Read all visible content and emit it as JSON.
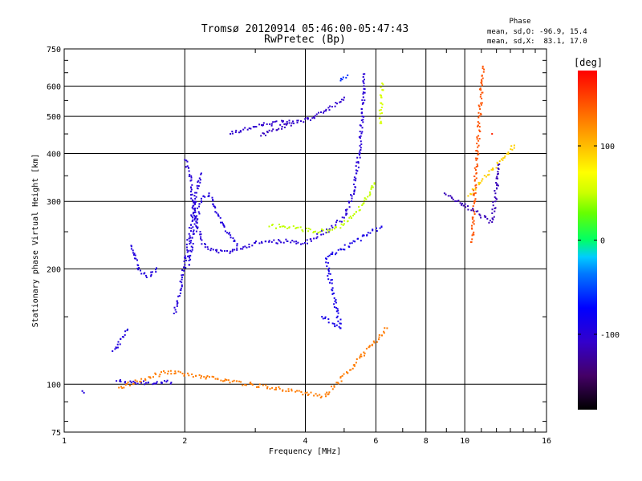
{
  "chart_data": {
    "type": "scatter",
    "title": "Tromsø 20120914 05:46:00-05:47:43",
    "subtitle": "RwPretec (Bp)",
    "xlabel": "Frequency [MHz]",
    "ylabel": "Stationary phase Virtual Height [km]",
    "x_scale": "log",
    "y_scale": "log",
    "xlim": [
      1,
      16
    ],
    "ylim": [
      75,
      750
    ],
    "grid": true,
    "x_ticks": [
      1,
      2,
      4,
      6,
      8,
      10,
      16
    ],
    "x_tick_labels": [
      "1",
      "2",
      "4",
      "6",
      "8",
      "10",
      "16"
    ],
    "y_ticks": [
      75,
      100,
      200,
      300,
      400,
      500,
      600,
      750
    ],
    "y_tick_labels": [
      "75",
      "100",
      "200",
      "300",
      "400",
      "500",
      "600",
      "750"
    ],
    "stats": {
      "heading": "Phase",
      "line_o": "mean, sd,O: -96.9, 15.4",
      "line_x": "mean, sd,X:  83.1, 17.0"
    },
    "colorbar": {
      "unit": "[deg]",
      "range": [
        -180,
        180
      ],
      "ticks": [
        100,
        0,
        -100
      ],
      "tick_labels": [
        "100",
        "0",
        "-100"
      ]
    },
    "traces": [
      {
        "name": "",
        "phase": -96,
        "points": [
          [
            1.11,
            96
          ],
          [
            1.12,
            95
          ]
        ]
      },
      {
        "name": "",
        "phase": -98,
        "points": [
          [
            1.35,
            102
          ],
          [
            1.42,
            101.5
          ],
          [
            1.5,
            101
          ],
          [
            1.6,
            100.8
          ],
          [
            1.7,
            100.5
          ],
          [
            1.75,
            100.5
          ],
          [
            1.8,
            101.5
          ],
          [
            1.85,
            101
          ]
        ]
      },
      {
        "name": "",
        "phase": -95,
        "points": [
          [
            1.32,
            122
          ],
          [
            1.36,
            127
          ],
          [
            1.4,
            133
          ],
          [
            1.44,
            139
          ]
        ]
      },
      {
        "name": "",
        "phase": -95,
        "points": [
          [
            1.47,
            230
          ],
          [
            1.5,
            213
          ],
          [
            1.55,
            198
          ],
          [
            1.6,
            192
          ],
          [
            1.65,
            193
          ],
          [
            1.7,
            201
          ]
        ]
      },
      {
        "name": "",
        "phase": -98,
        "points": [
          [
            1.88,
            153
          ],
          [
            1.92,
            163
          ],
          [
            1.95,
            176
          ],
          [
            1.97,
            190
          ],
          [
            2.0,
            205
          ],
          [
            2.05,
            240
          ],
          [
            2.1,
            287
          ],
          [
            2.15,
            325
          ],
          [
            2.2,
            355
          ]
        ]
      },
      {
        "name": "",
        "phase": -95,
        "points": [
          [
            2.05,
            205
          ],
          [
            2.1,
            250
          ],
          [
            2.2,
            305
          ],
          [
            2.3,
            315
          ],
          [
            2.35,
            295
          ],
          [
            2.4,
            280
          ],
          [
            2.5,
            260
          ],
          [
            2.6,
            245
          ],
          [
            2.7,
            230
          ]
        ]
      },
      {
        "name": "",
        "phase": -100,
        "points": [
          [
            2.0,
            385
          ],
          [
            2.05,
            360
          ],
          [
            2.1,
            300
          ],
          [
            2.15,
            255
          ],
          [
            2.25,
            228
          ],
          [
            2.4,
            222
          ],
          [
            2.6,
            222
          ],
          [
            2.8,
            228
          ],
          [
            3.0,
            234
          ],
          [
            3.3,
            235
          ],
          [
            3.6,
            236
          ],
          [
            3.9,
            232
          ],
          [
            4.2,
            240
          ],
          [
            4.6,
            254
          ],
          [
            5.0,
            272
          ],
          [
            5.3,
            320
          ],
          [
            5.45,
            400
          ],
          [
            5.55,
            500
          ],
          [
            5.6,
            600
          ],
          [
            5.62,
            645
          ]
        ]
      },
      {
        "name": "",
        "phase": -106,
        "points": [
          [
            2.6,
            450
          ],
          [
            2.8,
            462
          ],
          [
            3.0,
            470
          ],
          [
            3.3,
            478
          ],
          [
            3.6,
            484
          ],
          [
            3.9,
            486
          ],
          [
            4.2,
            497
          ],
          [
            4.5,
            517
          ],
          [
            4.8,
            540
          ],
          [
            5.0,
            560
          ]
        ]
      },
      {
        "name": "",
        "phase": -112,
        "points": [
          [
            3.1,
            445
          ],
          [
            3.3,
            458
          ],
          [
            3.5,
            470
          ],
          [
            3.7,
            480
          ]
        ]
      },
      {
        "name": "",
        "phase": 48,
        "points": [
          [
            3.25,
            258
          ],
          [
            3.5,
            258
          ],
          [
            3.8,
            256
          ],
          [
            4.2,
            250
          ],
          [
            4.6,
            252
          ],
          [
            5.0,
            262
          ],
          [
            5.3,
            278
          ],
          [
            5.6,
            297
          ],
          [
            5.8,
            317
          ],
          [
            5.95,
            335
          ]
        ]
      },
      {
        "name": "",
        "phase": 55,
        "points": [
          [
            6.15,
            480
          ],
          [
            6.18,
            520
          ],
          [
            6.2,
            560
          ],
          [
            6.22,
            610
          ]
        ]
      },
      {
        "name": "",
        "phase": -58,
        "points": [
          [
            4.9,
            620
          ],
          [
            5.1,
            640
          ]
        ]
      },
      {
        "name": "",
        "phase": 92,
        "points": [
          [
            10.2,
            310
          ],
          [
            13.3,
            420
          ]
        ]
      },
      {
        "name": "",
        "phase": 145,
        "points": [
          [
            10.4,
            235
          ],
          [
            11.1,
            675
          ]
        ]
      },
      {
        "name": "",
        "phase": 165,
        "points": [
          [
            11.7,
            450
          ]
        ]
      },
      {
        "name": "",
        "phase": -115,
        "points": [
          [
            8.9,
            315
          ],
          [
            11.7,
            265
          ],
          [
            12.2,
            375
          ]
        ]
      },
      {
        "name": "",
        "phase": 128,
        "points": [
          [
            1.37,
            98
          ],
          [
            1.82,
            108
          ],
          [
            4.5,
            93
          ],
          [
            6.4,
            140
          ]
        ]
      },
      {
        "name": "",
        "phase": -88,
        "points": [
          [
            4.4,
            150
          ],
          [
            4.9,
            140
          ],
          [
            4.5,
            213
          ],
          [
            6.2,
            258
          ]
        ]
      }
    ]
  }
}
